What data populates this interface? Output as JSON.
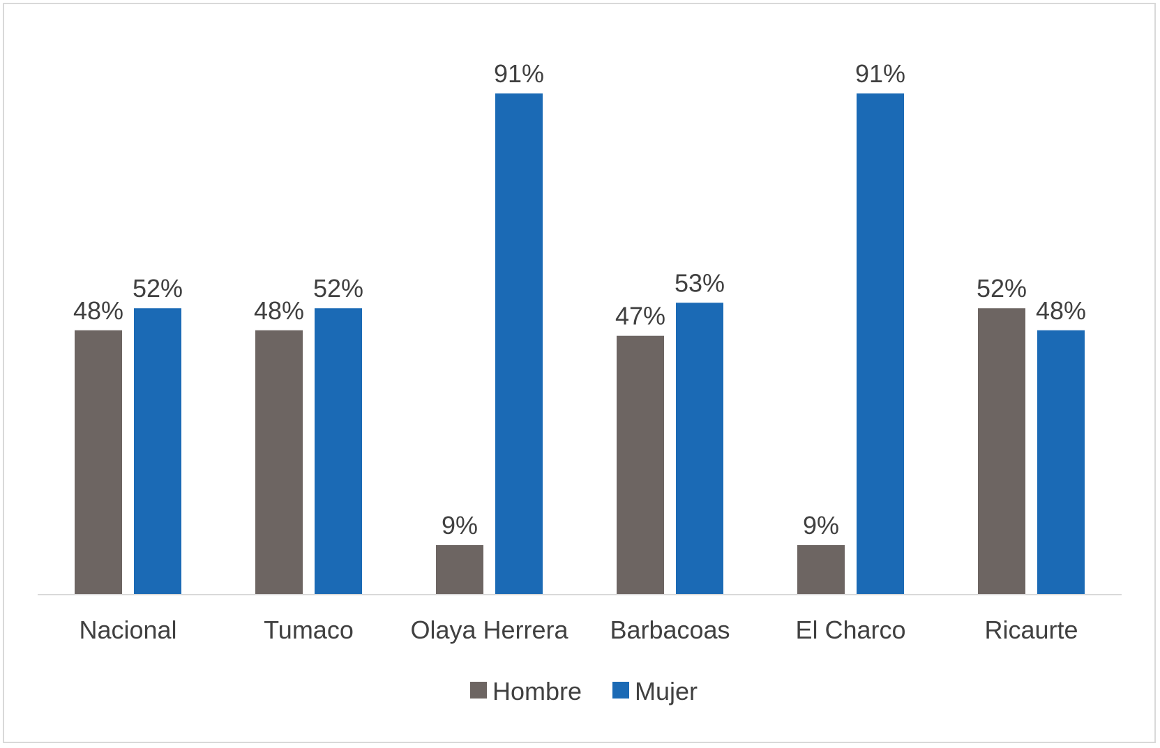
{
  "chart_data": {
    "type": "bar",
    "categories": [
      "Nacional",
      "Tumaco",
      "Olaya Herrera",
      "Barbacoas",
      "El Charco",
      "Ricaurte"
    ],
    "series": [
      {
        "name": "Hombre",
        "values": [
          48,
          48,
          9,
          47,
          9,
          52
        ],
        "labels": [
          "48%",
          "48%",
          "9%",
          "47%",
          "9%",
          "52%"
        ],
        "color": "#6d6562"
      },
      {
        "name": "Mujer",
        "values": [
          52,
          52,
          91,
          53,
          91,
          48
        ],
        "labels": [
          "52%",
          "52%",
          "91%",
          "53%",
          "91%",
          "48%"
        ],
        "color": "#1b6ab5"
      }
    ],
    "ylim": [
      0,
      100
    ],
    "grid": false,
    "legend": "bottom"
  }
}
